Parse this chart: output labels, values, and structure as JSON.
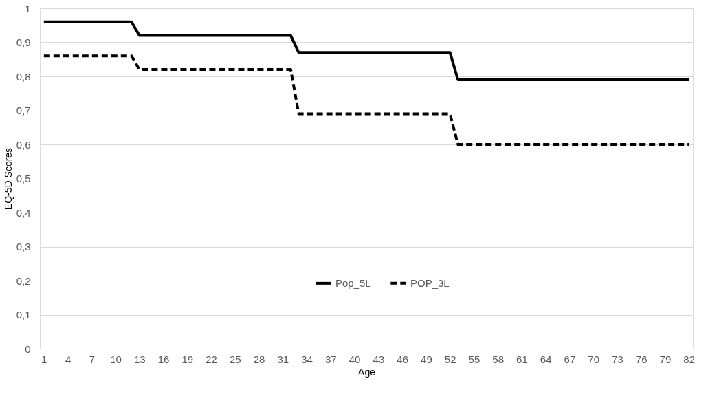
{
  "chart_data": {
    "type": "line",
    "xlabel": "Age",
    "ylabel": "EQ-5D Scores",
    "categories": [
      "1",
      null,
      null,
      "4",
      null,
      null,
      "7",
      null,
      null,
      "10",
      null,
      null,
      "13",
      null,
      null,
      "16",
      null,
      null,
      "19",
      null,
      null,
      "22",
      null,
      null,
      "25",
      null,
      null,
      "28",
      null,
      null,
      "31",
      null,
      null,
      "34",
      null,
      null,
      "37",
      null,
      null,
      "40",
      null,
      null,
      "43",
      null,
      null,
      "46",
      null,
      null,
      "49",
      null,
      null,
      "52",
      null,
      null,
      "55",
      null,
      null,
      "58",
      null,
      null,
      "61",
      null,
      null,
      "64",
      null,
      null,
      "67",
      null,
      null,
      "70",
      null,
      null,
      "73",
      null,
      null,
      "76",
      null,
      null,
      "79",
      null,
      null,
      "82"
    ],
    "series": [
      {
        "name": "Pop_5L",
        "color": "#000000",
        "line_style": "solid",
        "values": [
          0.96,
          0.96,
          0.96,
          0.96,
          0.96,
          0.96,
          0.96,
          0.96,
          0.96,
          0.96,
          0.96,
          0.96,
          0.92,
          0.92,
          0.92,
          0.92,
          0.92,
          0.92,
          0.92,
          0.92,
          0.92,
          0.92,
          0.92,
          0.92,
          0.92,
          0.92,
          0.92,
          0.92,
          0.92,
          0.92,
          0.92,
          0.92,
          0.87,
          0.87,
          0.87,
          0.87,
          0.87,
          0.87,
          0.87,
          0.87,
          0.87,
          0.87,
          0.87,
          0.87,
          0.87,
          0.87,
          0.87,
          0.87,
          0.87,
          0.87,
          0.87,
          0.87,
          0.79,
          0.79,
          0.79,
          0.79,
          0.79,
          0.79,
          0.79,
          0.79,
          0.79,
          0.79,
          0.79,
          0.79,
          0.79,
          0.79,
          0.79,
          0.79,
          0.79,
          0.79,
          0.79,
          0.79,
          0.79,
          0.79,
          0.79,
          0.79,
          0.79,
          0.79,
          0.79,
          0.79,
          0.79,
          0.79
        ]
      },
      {
        "name": "POP_3L",
        "color": "#000000",
        "line_style": "dashed",
        "values": [
          0.86,
          0.86,
          0.86,
          0.86,
          0.86,
          0.86,
          0.86,
          0.86,
          0.86,
          0.86,
          0.86,
          0.86,
          0.82,
          0.82,
          0.82,
          0.82,
          0.82,
          0.82,
          0.82,
          0.82,
          0.82,
          0.82,
          0.82,
          0.82,
          0.82,
          0.82,
          0.82,
          0.82,
          0.82,
          0.82,
          0.82,
          0.82,
          0.69,
          0.69,
          0.69,
          0.69,
          0.69,
          0.69,
          0.69,
          0.69,
          0.69,
          0.69,
          0.69,
          0.69,
          0.69,
          0.69,
          0.69,
          0.69,
          0.69,
          0.69,
          0.69,
          0.69,
          0.6,
          0.6,
          0.6,
          0.6,
          0.6,
          0.6,
          0.6,
          0.6,
          0.6,
          0.6,
          0.6,
          0.6,
          0.6,
          0.6,
          0.6,
          0.6,
          0.6,
          0.6,
          0.6,
          0.6,
          0.6,
          0.6,
          0.6,
          0.6,
          0.6,
          0.6,
          0.6,
          0.6,
          0.6,
          0.6
        ]
      }
    ],
    "ylim": [
      0,
      1
    ],
    "yticks": [
      0,
      {
        "value": 0.1,
        "label": "0,1"
      },
      {
        "value": 0.2,
        "label": "0,2"
      },
      {
        "value": 0.3,
        "label": "0,3"
      },
      {
        "value": 0.4,
        "label": "0,4"
      },
      {
        "value": 0.5,
        "label": "0,5"
      },
      {
        "value": 0.6,
        "label": "0,6"
      },
      {
        "value": 0.7,
        "label": "0,7"
      },
      {
        "value": 0.8,
        "label": "0,8"
      },
      {
        "value": 0.9,
        "label": "0,9"
      },
      1
    ],
    "grid": "y",
    "legend": "bottom"
  }
}
